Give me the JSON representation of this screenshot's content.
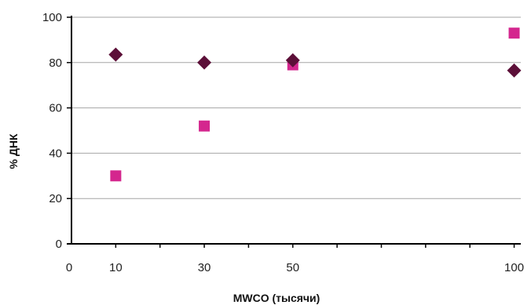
{
  "chart_data": {
    "type": "scatter",
    "xlabel": "MWCO (тысячи)",
    "ylabel": "% ДНК",
    "x_ticks": [
      0,
      10,
      30,
      50,
      100
    ],
    "x_tick_labels": [
      "0",
      "10",
      "30",
      "50",
      "100"
    ],
    "y_ticks": [
      0,
      20,
      40,
      60,
      80,
      100
    ],
    "ylim": [
      0,
      100
    ],
    "grid": "horizontal",
    "legend": "none",
    "series": [
      {
        "marker": "diamond",
        "color": "#5c0f38",
        "x": [
          10,
          30,
          50,
          100
        ],
        "y": [
          83.5,
          80,
          81,
          76.5
        ]
      },
      {
        "marker": "square",
        "color": "#d4268e",
        "x": [
          10,
          30,
          50,
          100
        ],
        "y": [
          30,
          52,
          79,
          93
        ]
      }
    ]
  }
}
